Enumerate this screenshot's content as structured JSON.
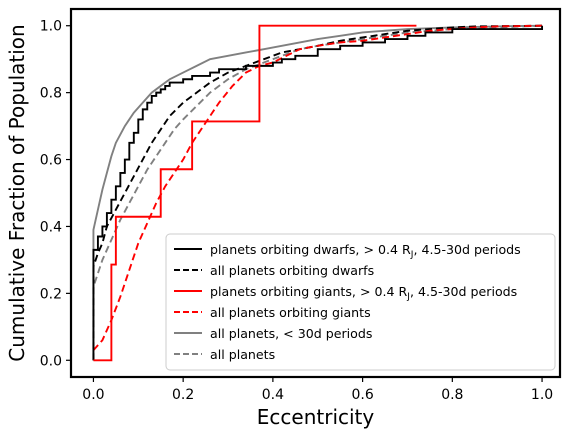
{
  "chart_data": {
    "type": "line",
    "title": "",
    "xlabel": "Eccentricity",
    "ylabel": "Cumulative Fraction of Population",
    "xlim": [
      -0.05,
      1.04
    ],
    "ylim": [
      -0.05,
      1.05
    ],
    "xticks": [
      "0.0",
      "0.2",
      "0.4",
      "0.6",
      "0.8",
      "1.0"
    ],
    "yticks": [
      "0.0",
      "0.2",
      "0.4",
      "0.6",
      "0.8",
      "1.0"
    ],
    "grid": false,
    "legend_position": "lower-right",
    "series": [
      {
        "name": "planets orbiting dwarfs, > 0.4 R_J, 4.5-30d periods",
        "legend_main": "planets orbiting dwarfs, ",
        "legend_math": "> 0.4 R",
        "legend_sub": "J",
        "legend_tail": ", 4.5-30d periods",
        "color": "#000000",
        "dash": "solid",
        "step": true,
        "x": [
          0.0,
          0.0,
          0.01,
          0.02,
          0.03,
          0.04,
          0.05,
          0.06,
          0.07,
          0.08,
          0.09,
          0.1,
          0.11,
          0.12,
          0.13,
          0.14,
          0.15,
          0.16,
          0.17,
          0.18,
          0.2,
          0.22,
          0.24,
          0.26,
          0.28,
          0.3,
          0.32,
          0.34,
          0.36,
          0.38,
          0.4,
          0.42,
          0.45,
          0.5,
          0.55,
          0.6,
          0.65,
          0.7,
          0.74,
          0.8,
          1.0
        ],
        "y": [
          0.0,
          0.33,
          0.37,
          0.4,
          0.44,
          0.48,
          0.52,
          0.56,
          0.6,
          0.65,
          0.68,
          0.72,
          0.75,
          0.77,
          0.79,
          0.8,
          0.81,
          0.82,
          0.83,
          0.83,
          0.84,
          0.85,
          0.85,
          0.86,
          0.87,
          0.87,
          0.87,
          0.88,
          0.88,
          0.88,
          0.89,
          0.9,
          0.91,
          0.93,
          0.94,
          0.95,
          0.96,
          0.97,
          0.98,
          0.99,
          1.0
        ]
      },
      {
        "name": "all planets orbiting dwarfs",
        "legend_main": "all planets orbiting dwarfs",
        "color": "#000000",
        "dash": "dashed",
        "step": false,
        "x": [
          0.0,
          0.0,
          0.01,
          0.02,
          0.03,
          0.05,
          0.07,
          0.09,
          0.11,
          0.13,
          0.15,
          0.17,
          0.2,
          0.23,
          0.26,
          0.3,
          0.34,
          0.38,
          0.42,
          0.46,
          0.5,
          0.55,
          0.6,
          0.65,
          0.7,
          0.75,
          0.8,
          0.85,
          1.0
        ],
        "y": [
          0.0,
          0.28,
          0.32,
          0.35,
          0.4,
          0.45,
          0.5,
          0.55,
          0.6,
          0.65,
          0.69,
          0.73,
          0.77,
          0.8,
          0.83,
          0.86,
          0.88,
          0.9,
          0.92,
          0.93,
          0.94,
          0.955,
          0.965,
          0.975,
          0.985,
          0.99,
          0.995,
          0.998,
          1.0
        ]
      },
      {
        "name": "planets orbiting giants, > 0.4 R_J, 4.5-30d periods",
        "legend_main": "planets orbiting giants, ",
        "legend_math": "> 0.4 R",
        "legend_sub": "J",
        "legend_tail": ", 4.5-30d periods",
        "color": "#ff0000",
        "dash": "solid",
        "step": true,
        "x": [
          0.0,
          0.04,
          0.05,
          0.15,
          0.22,
          0.35,
          0.37,
          0.72
        ],
        "y": [
          0.0,
          0.286,
          0.429,
          0.571,
          0.714,
          0.714,
          1.0,
          1.0
        ]
      },
      {
        "name": "all planets orbiting giants",
        "legend_main": "all planets orbiting giants",
        "color": "#ff0000",
        "dash": "dashed",
        "step": false,
        "x": [
          0.0,
          0.02,
          0.04,
          0.06,
          0.08,
          0.1,
          0.12,
          0.14,
          0.16,
          0.18,
          0.2,
          0.22,
          0.25,
          0.28,
          0.31,
          0.34,
          0.37,
          0.4,
          0.43,
          0.46,
          0.5,
          0.55,
          0.6,
          0.65,
          0.7,
          0.75,
          0.8,
          0.85,
          0.9,
          1.0
        ],
        "y": [
          0.03,
          0.06,
          0.12,
          0.19,
          0.27,
          0.35,
          0.41,
          0.47,
          0.52,
          0.56,
          0.6,
          0.65,
          0.71,
          0.77,
          0.82,
          0.86,
          0.88,
          0.89,
          0.91,
          0.93,
          0.94,
          0.95,
          0.955,
          0.965,
          0.975,
          0.985,
          0.99,
          0.995,
          0.998,
          1.0
        ]
      },
      {
        "name": "all planets, < 30d periods",
        "legend_main": "all planets, ",
        "legend_math": "< 30d periods",
        "color": "#808080",
        "dash": "solid",
        "step": false,
        "x": [
          0.0,
          0.0,
          0.01,
          0.02,
          0.03,
          0.04,
          0.05,
          0.07,
          0.09,
          0.11,
          0.13,
          0.15,
          0.17,
          0.2,
          0.23,
          0.26,
          0.3,
          0.34,
          0.38,
          0.42,
          0.46,
          0.5,
          0.55,
          0.6,
          0.65,
          0.7,
          0.8,
          0.9,
          1.0
        ],
        "y": [
          0.0,
          0.39,
          0.45,
          0.51,
          0.56,
          0.61,
          0.65,
          0.7,
          0.74,
          0.77,
          0.8,
          0.82,
          0.84,
          0.86,
          0.88,
          0.9,
          0.91,
          0.92,
          0.93,
          0.94,
          0.95,
          0.96,
          0.97,
          0.98,
          0.985,
          0.99,
          0.995,
          0.998,
          1.0
        ]
      },
      {
        "name": "all planets",
        "legend_main": "all planets",
        "color": "#808080",
        "dash": "dashed",
        "step": false,
        "x": [
          0.0,
          0.0,
          0.01,
          0.02,
          0.04,
          0.06,
          0.08,
          0.1,
          0.12,
          0.14,
          0.16,
          0.18,
          0.2,
          0.23,
          0.26,
          0.3,
          0.34,
          0.38,
          0.42,
          0.46,
          0.5,
          0.55,
          0.6,
          0.65,
          0.7,
          0.75,
          0.8,
          0.9,
          1.0
        ],
        "y": [
          0.0,
          0.22,
          0.26,
          0.3,
          0.36,
          0.42,
          0.47,
          0.52,
          0.57,
          0.61,
          0.65,
          0.69,
          0.72,
          0.76,
          0.8,
          0.84,
          0.87,
          0.89,
          0.91,
          0.93,
          0.94,
          0.95,
          0.96,
          0.97,
          0.98,
          0.985,
          0.99,
          0.995,
          1.0
        ]
      }
    ]
  }
}
